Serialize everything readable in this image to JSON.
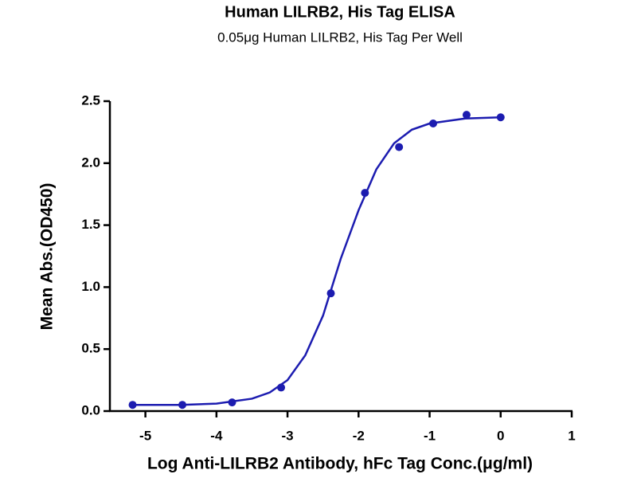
{
  "chart_data": {
    "type": "scatter",
    "title": "Human LILRB2, His Tag ELISA",
    "subtitle": "0.05μg Human LILRB2, His Tag Per Well",
    "x_label": "Log Anti-LILRB2 Antibody, hFc Tag Conc.(μg/ml)",
    "y_label": "Mean Abs.(OD450)",
    "xlim": [
      -5.5,
      1
    ],
    "ylim": [
      0,
      2.5
    ],
    "xticks": [
      -5,
      -4,
      -3,
      -2,
      -1,
      0,
      1
    ],
    "yticks": [
      {
        "value": 0,
        "label": "0.0"
      },
      {
        "value": 0.5,
        "label": "0.5"
      },
      {
        "value": 1,
        "label": "1.0"
      },
      {
        "value": 1.5,
        "label": "1.5"
      },
      {
        "value": 2,
        "label": "2.0"
      },
      {
        "value": 2.5,
        "label": "2.5"
      }
    ],
    "series": [
      {
        "style": "markers",
        "color": "#1c1cb0",
        "x": [
          -5.18,
          -4.48,
          -3.78,
          -3.09,
          -2.39,
          -1.91,
          -1.43,
          -0.95,
          -0.48,
          0
        ],
        "values": [
          0.05,
          0.05,
          0.07,
          0.19,
          0.95,
          1.76,
          2.13,
          2.32,
          2.39,
          2.37
        ]
      },
      {
        "style": "line",
        "color": "#1c1cb0",
        "x": [
          -5.2,
          -4.5,
          -4.0,
          -3.5,
          -3.25,
          -3.0,
          -2.75,
          -2.5,
          -2.25,
          -2.0,
          -1.75,
          -1.5,
          -1.25,
          -1.0,
          -0.5,
          0
        ],
        "values": [
          0.05,
          0.05,
          0.06,
          0.1,
          0.15,
          0.25,
          0.45,
          0.77,
          1.23,
          1.62,
          1.95,
          2.16,
          2.27,
          2.32,
          2.36,
          2.37
        ]
      }
    ]
  }
}
